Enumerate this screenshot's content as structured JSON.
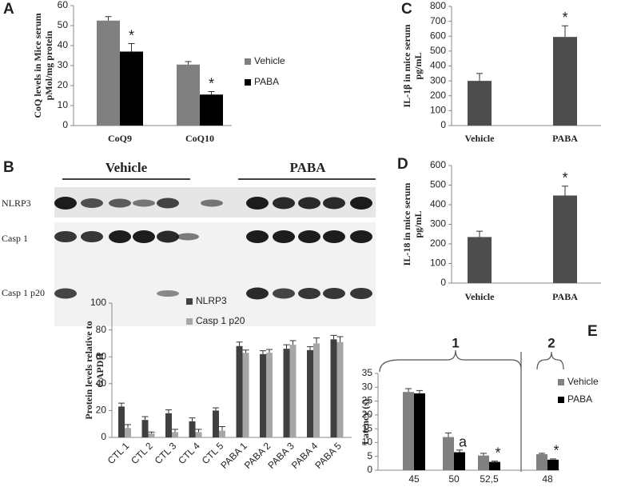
{
  "panel_labels": [
    "A",
    "B",
    "C",
    "D",
    "E"
  ],
  "blot": {
    "groups": [
      "Vehicle",
      "PABA"
    ],
    "rows": [
      "NLRP3",
      "Casp 1",
      "Casp 1 p20"
    ]
  },
  "chart_data": [
    {
      "type": "bar",
      "ylabel": [
        "CoQ levels in Mice serum",
        "pMol/mg protein"
      ],
      "categories": [
        "CoQ9",
        "CoQ10"
      ],
      "series": [
        {
          "name": "Vehicle",
          "color": "#808080",
          "values": [
            52.5,
            30.5
          ],
          "errors": [
            2,
            1.5
          ],
          "markers": [
            null,
            null
          ]
        },
        {
          "name": "PABA",
          "color": "#000000",
          "values": [
            37,
            15.5
          ],
          "errors": [
            4,
            1.5
          ],
          "markers": [
            "*",
            "*"
          ]
        }
      ],
      "ylim": [
        0,
        60
      ],
      "yticks": [
        0,
        10,
        20,
        30,
        40,
        50,
        60
      ],
      "legend": "right"
    },
    {
      "type": "bar",
      "ylabel": [
        "IL-1β in mice serum",
        "pg/mL"
      ],
      "categories": [
        "Vehicle",
        "PABA"
      ],
      "series": [
        {
          "color": "#4d4d4d",
          "values": [
            300,
            595
          ],
          "errors": [
            50,
            75
          ],
          "markers": [
            null,
            "*"
          ]
        }
      ],
      "ylim": [
        0,
        800
      ],
      "yticks": [
        0,
        100,
        200,
        300,
        400,
        500,
        600,
        700,
        800
      ]
    },
    {
      "type": "bar",
      "ylabel": [
        "IL-18 in mice serum",
        "pg/mL"
      ],
      "categories": [
        "Vehicle",
        "PABA"
      ],
      "series": [
        {
          "color": "#4d4d4d",
          "values": [
            235,
            447
          ],
          "errors": [
            30,
            48
          ],
          "markers": [
            null,
            "*"
          ]
        }
      ],
      "ylim": [
        0,
        600
      ],
      "yticks": [
        0,
        100,
        200,
        300,
        400,
        500,
        600
      ]
    },
    {
      "type": "bar",
      "ylabel": [
        "Protein levels relative to",
        "GAPDH"
      ],
      "categories": [
        "CTL 1",
        "CTL 2",
        "CTL 3",
        "CTL 4",
        "CTL 5",
        "PABA 1",
        "PABA 2",
        "PABA 3",
        "PABA 4",
        "PABA 5"
      ],
      "series": [
        {
          "name": "NLRP3",
          "color": "#404040",
          "values": [
            23,
            13,
            18,
            12,
            20,
            68,
            62,
            66,
            65,
            73
          ],
          "errors": [
            2.5,
            2.5,
            2.5,
            2.5,
            2,
            3,
            2.5,
            3,
            2.5,
            3
          ]
        },
        {
          "name": "Casp 1 p20",
          "color": "#a6a6a6",
          "values": [
            7,
            3,
            4,
            4,
            5,
            63,
            63,
            69,
            70,
            71
          ],
          "errors": [
            2.5,
            1,
            2,
            2,
            3,
            2,
            2.5,
            3,
            4,
            4
          ]
        }
      ],
      "ylim": [
        0,
        100
      ],
      "yticks": [
        0,
        20,
        40,
        60,
        80,
        100
      ],
      "legend": "top"
    },
    {
      "type": "bar",
      "ylabel": [
        "Latency (s)"
      ],
      "groups": [
        "1",
        "2"
      ],
      "categories": [
        "45",
        "50",
        "52,5",
        "48"
      ],
      "series": [
        {
          "name": "Vehicle",
          "color": "#808080",
          "values": [
            28.3,
            12,
            5.3,
            5.8
          ],
          "errors": [
            1.2,
            1.5,
            0.8,
            0.3
          ],
          "markers": [
            null,
            null,
            null,
            null
          ]
        },
        {
          "name": "PABA",
          "color": "#000000",
          "values": [
            27.8,
            6.5,
            3,
            3.8
          ],
          "errors": [
            1,
            0.8,
            0.3,
            0.3
          ],
          "markers": [
            null,
            "a",
            "*",
            "*"
          ]
        }
      ],
      "ylim": [
        0,
        35
      ],
      "yticks": [
        0,
        5,
        10,
        15,
        20,
        25,
        30,
        35
      ],
      "legend": "right"
    }
  ]
}
